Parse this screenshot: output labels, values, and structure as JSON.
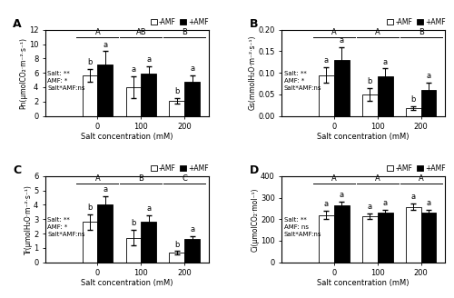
{
  "chart_data": [
    {
      "type": "bar",
      "title": "A",
      "x_label": "Salt concentration (mM)",
      "y_label": "Pn(μmolCO₂·m⁻²·s⁻¹)",
      "categories": [
        "0",
        "100",
        "200"
      ],
      "series": [
        {
          "name": "-AMF",
          "color": "white",
          "values": [
            5.6,
            4.0,
            2.1
          ],
          "errors": [
            0.9,
            1.5,
            0.4
          ],
          "annotations": [
            "b",
            "a",
            "b"
          ]
        },
        {
          "name": "+AMF",
          "color": "black",
          "values": [
            7.2,
            5.9,
            4.7
          ],
          "errors": [
            1.8,
            1.0,
            1.0
          ],
          "annotations": [
            "a",
            "a",
            "a"
          ]
        }
      ],
      "category_annotations": [
        "A",
        "AB",
        "B"
      ],
      "annotations": [
        "Salt: **\nAMF: *\nSalt*AMF:ns"
      ],
      "ylim": [
        0,
        12
      ],
      "yticks": [
        0,
        2,
        4,
        6,
        8,
        10,
        12
      ],
      "legend": "upper right"
    },
    {
      "type": "bar",
      "title": "B",
      "x_label": "Salt concentration (mM)",
      "y_label": "Gs(mmolH₂O·m⁻²·s⁻¹)",
      "categories": [
        "0",
        "100",
        "200"
      ],
      "series": [
        {
          "name": "-AMF",
          "color": "white",
          "values": [
            0.095,
            0.05,
            0.018
          ],
          "errors": [
            0.018,
            0.015,
            0.005
          ],
          "annotations": [
            "a",
            "b",
            "b"
          ]
        },
        {
          "name": "+AMF",
          "color": "black",
          "values": [
            0.13,
            0.092,
            0.06
          ],
          "errors": [
            0.03,
            0.018,
            0.018
          ],
          "annotations": [
            "a",
            "a",
            "a"
          ]
        }
      ],
      "category_annotations": [
        "A",
        "A",
        "B"
      ],
      "annotations": [
        "Salt: **\nAMF: *\nSalt*AMF:ns"
      ],
      "ylim": [
        0,
        0.2
      ],
      "yticks": [
        {
          "value": 0,
          "label": "0.00"
        },
        0.05,
        {
          "value": 0.1,
          "label": "0.10"
        },
        0.15,
        {
          "value": 0.2,
          "label": "0.20"
        }
      ],
      "legend": "upper right"
    },
    {
      "type": "bar",
      "title": "C",
      "x_label": "Salt concentration (mM)",
      "y_label": "Tr(μmolH₂O·m⁻²·s⁻¹)",
      "categories": [
        "0",
        "100",
        "200"
      ],
      "series": [
        {
          "name": "-AMF",
          "color": "white",
          "values": [
            2.8,
            1.7,
            0.65
          ],
          "errors": [
            0.55,
            0.55,
            0.12
          ],
          "annotations": [
            "b",
            "b",
            "b"
          ]
        },
        {
          "name": "+AMF",
          "color": "black",
          "values": [
            4.05,
            2.8,
            1.6
          ],
          "errors": [
            0.55,
            0.45,
            0.22
          ],
          "annotations": [
            "a",
            "a",
            "a"
          ]
        }
      ],
      "category_annotations": [
        "A",
        "B",
        "C"
      ],
      "annotations": [
        "Salt: **\nAMF: *\nSalt*AMF:ns"
      ],
      "ylim": [
        0,
        6
      ],
      "yticks": [
        0,
        1,
        2,
        3,
        4,
        5,
        6
      ],
      "legend": "upper right"
    },
    {
      "type": "bar",
      "title": "D",
      "x_label": "Salt concentration (mM)",
      "y_label": "Ci(μmolCO₂·mol⁻¹)",
      "categories": [
        "0",
        "100",
        "200"
      ],
      "series": [
        {
          "name": "-AMF",
          "color": "white",
          "values": [
            220,
            215,
            258
          ],
          "errors": [
            20,
            12,
            15
          ],
          "annotations": [
            "a",
            "a",
            "a"
          ]
        },
        {
          "name": "+AMF",
          "color": "black",
          "values": [
            265,
            230,
            232
          ],
          "errors": [
            18,
            12,
            12
          ],
          "annotations": [
            "a",
            "a",
            "a"
          ]
        }
      ],
      "category_annotations": [
        "A",
        "A",
        "A"
      ],
      "annotations": [
        "Salt: **\nAMF: ns\nSalt*AMF:ns"
      ],
      "ylim": [
        0,
        400
      ],
      "yticks": [
        0,
        100,
        200,
        300,
        400
      ],
      "legend": "upper right"
    }
  ]
}
